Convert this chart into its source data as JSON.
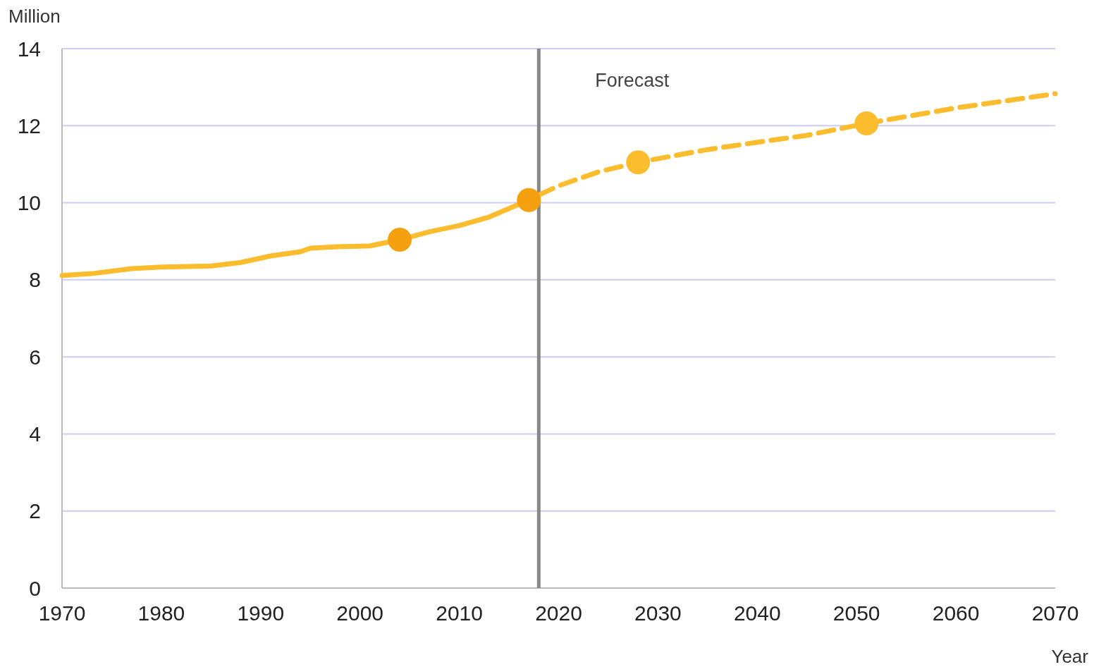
{
  "chart_data": {
    "type": "line",
    "ylabel": "Million",
    "xlabel": "Year",
    "xlim": [
      1970,
      2070
    ],
    "ylim": [
      0,
      14
    ],
    "xticks": [
      1970,
      1980,
      1990,
      2000,
      2010,
      2020,
      2030,
      2040,
      2050,
      2060,
      2070
    ],
    "yticks": [
      0,
      2,
      4,
      6,
      8,
      10,
      12,
      14
    ],
    "grid": "y",
    "series": [
      {
        "color": "#fbbd2e",
        "line_style": "solid",
        "marker": "none",
        "x": [
          1970,
          1973,
          1977,
          1980,
          1985,
          1988,
          1991,
          1994,
          1995,
          1998,
          2001,
          2004,
          2007,
          2010,
          2013,
          2015,
          2017,
          2018
        ],
        "values": [
          8.11,
          8.16,
          8.29,
          8.33,
          8.36,
          8.45,
          8.62,
          8.73,
          8.82,
          8.86,
          8.88,
          9.04,
          9.25,
          9.41,
          9.63,
          9.85,
          10.07,
          10.2
        ]
      },
      {
        "color": "#fbbd2e",
        "line_style": "dashed",
        "marker": "none",
        "x": [
          2018,
          2020,
          2024,
          2028,
          2035,
          2040,
          2045,
          2051,
          2060,
          2070
        ],
        "values": [
          10.2,
          10.44,
          10.8,
          11.05,
          11.38,
          11.57,
          11.75,
          12.06,
          12.46,
          12.83
        ]
      },
      {
        "type": "scatter",
        "marker": "circle",
        "colors": [
          "#f5a10f",
          "#f5a10f",
          "#fbbd2e",
          "#fbbd2e"
        ],
        "x": [
          2004,
          2017,
          2028,
          2051
        ],
        "values": [
          9.04,
          10.07,
          11.05,
          12.06
        ]
      }
    ],
    "ref_lines": [
      {
        "axis": "x",
        "value": 2018,
        "label": "Forecast",
        "color": "#888888"
      }
    ]
  }
}
